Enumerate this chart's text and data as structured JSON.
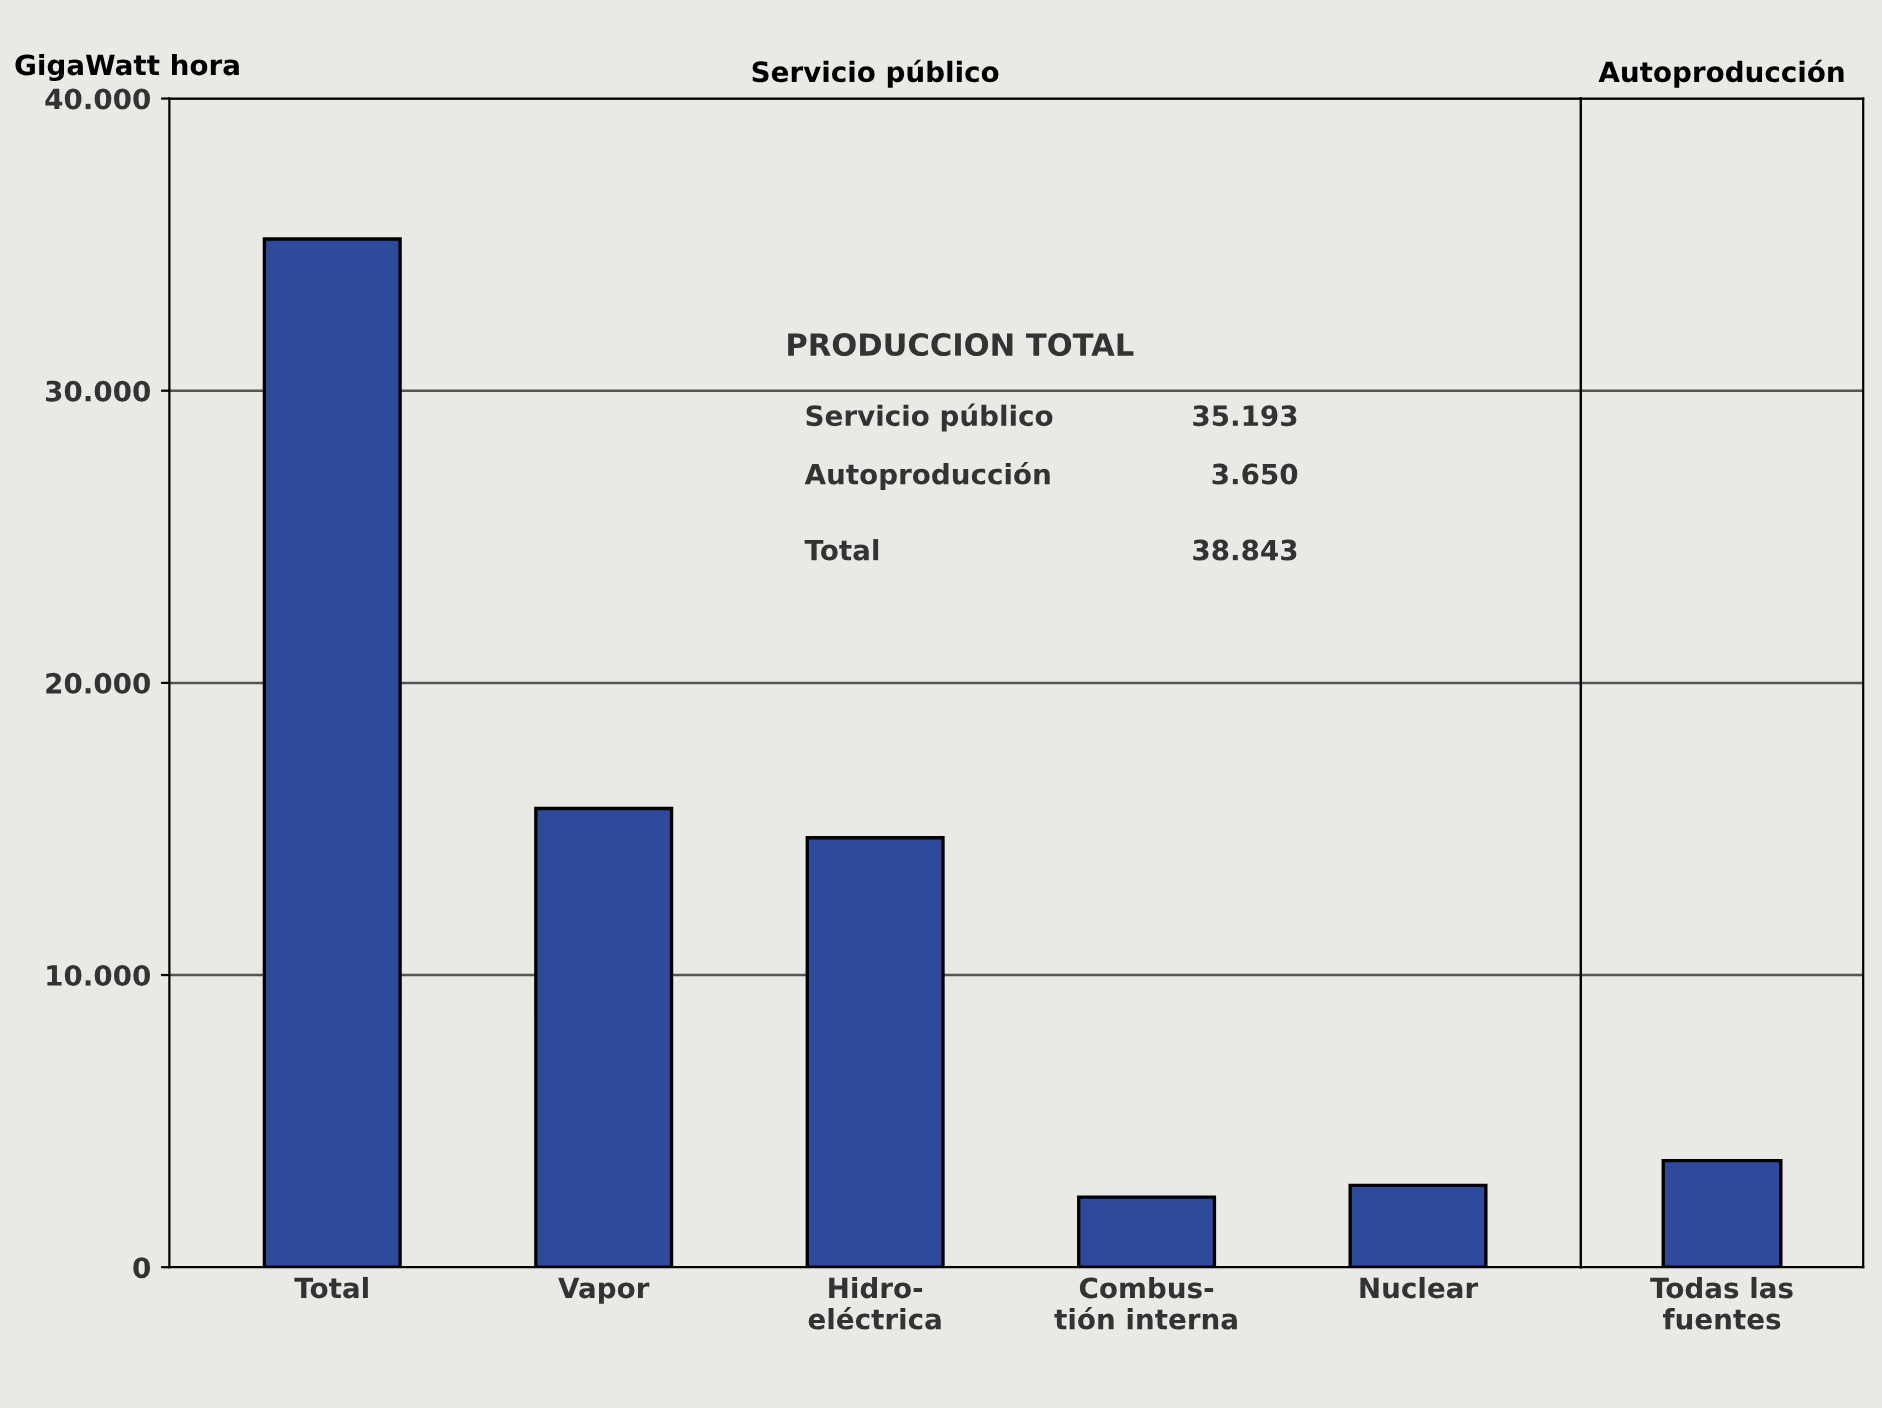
{
  "chart_data": [
    {
      "type": "bar",
      "title": "Servicio público",
      "ylabel": "GigaWatt hora",
      "categories": [
        "Total",
        "Vapor",
        "Hidro-\neléctrica",
        "Combus-\ntión interna",
        "Nuclear"
      ],
      "values": [
        35193,
        15700,
        14700,
        2400,
        2800
      ],
      "color": "#2e4a9c",
      "ylim": [
        0,
        40000
      ],
      "yticks": [
        {
          "value": 0,
          "label": "0"
        },
        {
          "value": 10000,
          "label": "10.000"
        },
        {
          "value": 20000,
          "label": "20.000"
        },
        {
          "value": 30000,
          "label": "30.000"
        },
        {
          "value": 40000,
          "label": "40.000"
        }
      ],
      "grid": "y",
      "annotations": [
        "PRODUCCION TOTAL",
        "Servicio público",
        "35.193",
        "Autoproducción",
        "3.650",
        "Total",
        "38.843"
      ]
    },
    {
      "type": "bar",
      "title": "Autoproducción",
      "categories": [
        "Todas las\nfuentes"
      ],
      "values": [
        3650
      ],
      "color": "#2e4a9c",
      "ylim": [
        0,
        40000
      ],
      "yticks": [
        {
          "value": 0,
          "label": null
        },
        {
          "value": 10000,
          "label": null
        },
        {
          "value": 20000,
          "label": null
        },
        {
          "value": 30000,
          "label": null
        },
        {
          "value": 40000,
          "label": null
        }
      ],
      "grid": "y",
      "tick_labels": "x"
    }
  ]
}
